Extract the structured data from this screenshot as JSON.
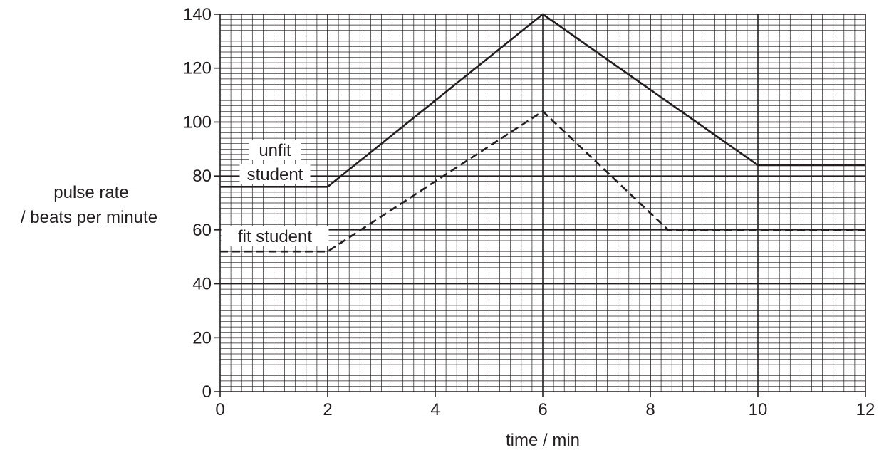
{
  "chart_data": {
    "type": "line",
    "xlabel": "time / min",
    "ylabel_lines": [
      "pulse rate",
      "/ beats per minute"
    ],
    "xlim": [
      0,
      12
    ],
    "ylim": [
      0,
      140
    ],
    "x_ticks": [
      0,
      2,
      4,
      6,
      8,
      10,
      12
    ],
    "y_ticks": [
      0,
      20,
      40,
      60,
      80,
      100,
      120,
      140
    ],
    "grid": {
      "major_x": 2,
      "major_y": 20,
      "minor_x": 0.2,
      "minor_y": 2
    },
    "series": [
      {
        "name": "unfit student",
        "label_lines": [
          "unfit",
          "student"
        ],
        "style": "solid",
        "points": [
          [
            0,
            76
          ],
          [
            2,
            76
          ],
          [
            6,
            140
          ],
          [
            10,
            84
          ],
          [
            12,
            84
          ]
        ]
      },
      {
        "name": "fit student",
        "label_lines": [
          "fit student"
        ],
        "style": "dashed",
        "points": [
          [
            0,
            52
          ],
          [
            2,
            52
          ],
          [
            6,
            104
          ],
          [
            8.33,
            60
          ],
          [
            12,
            60
          ]
        ]
      }
    ],
    "colors": {
      "ink": "#231f20"
    }
  }
}
